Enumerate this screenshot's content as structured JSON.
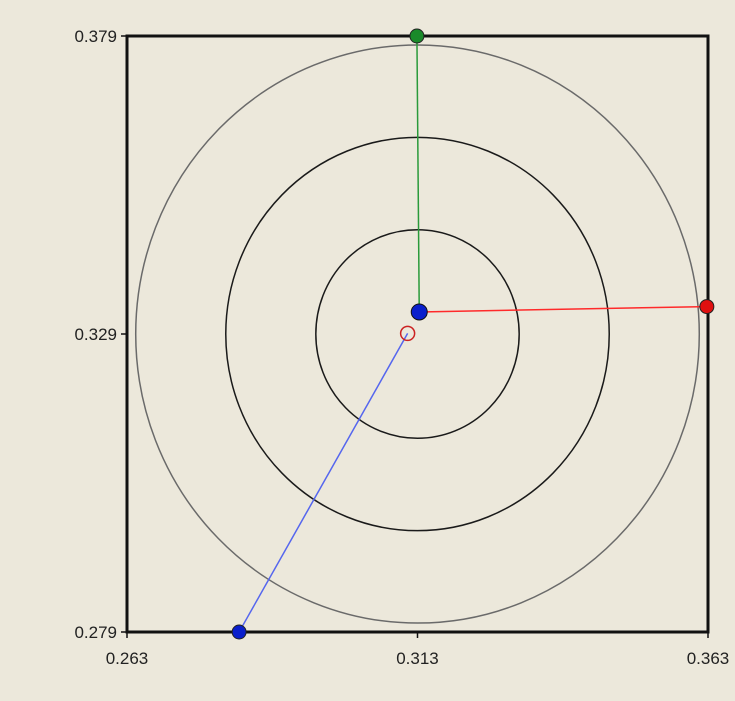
{
  "chart_data": {
    "type": "scatter",
    "title": "",
    "xlabel": "",
    "ylabel": "",
    "xlim": [
      0.263,
      0.363
    ],
    "ylim": [
      0.279,
      0.379
    ],
    "x_ticks": [
      "0.263",
      "0.313",
      "0.363"
    ],
    "y_ticks": [
      "0.379",
      "0.329",
      "0.279"
    ],
    "grid": false,
    "center": {
      "x": 0.313,
      "y": 0.329
    },
    "rings": [
      {
        "radius": 0.0175,
        "color": "#1a1a1a"
      },
      {
        "radius": 0.033,
        "color": "#1a1a1a"
      },
      {
        "radius": 0.0485,
        "color": "#6a6a6a"
      }
    ],
    "reference_point": {
      "x": 0.3113,
      "y": 0.3291,
      "color": "#cc2222"
    },
    "current_point": {
      "x": 0.3133,
      "y": 0.3327,
      "color": "#0a1fcc"
    },
    "vectors": [
      {
        "name": "",
        "color": "#e01010",
        "line_color": "#ff2a2a",
        "from": {
          "x": 0.3133,
          "y": 0.3327
        },
        "to": {
          "x": 0.3628,
          "y": 0.3336
        }
      },
      {
        "name": "",
        "color": "#1a8a2a",
        "line_color": "#2a9a3a",
        "from": {
          "x": 0.3133,
          "y": 0.3327
        },
        "to": {
          "x": 0.3129,
          "y": 0.379
        }
      },
      {
        "name": "",
        "color": "#0a1fcc",
        "line_color": "#5566ee",
        "from": {
          "x": 0.3113,
          "y": 0.3291
        },
        "to": {
          "x": 0.2823,
          "y": 0.279
        }
      }
    ]
  }
}
